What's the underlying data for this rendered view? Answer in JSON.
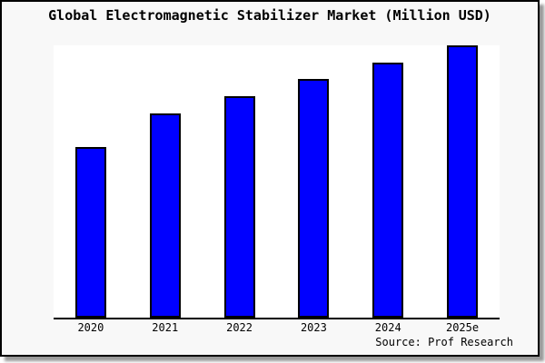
{
  "colors": {
    "bar_fill": "#0000ff",
    "bar_border": "#000000",
    "plot_bg": "#ffffff",
    "panel_bg": "#f8f8f8",
    "text": "#000000"
  },
  "chart_data": {
    "type": "bar",
    "title": "Global Electromagnetic Stabilizer Market (Million USD)",
    "categories": [
      "2020",
      "2021",
      "2022",
      "2023",
      "2024",
      "2025e"
    ],
    "values": [
      62.7,
      75,
      81.3,
      87.7,
      93.7,
      100
    ],
    "value_scale": "relative, 2025e = 100 (no y-axis labels shown)",
    "xlabel": "",
    "ylabel": "",
    "ylim": [
      0,
      100
    ],
    "grid": false,
    "legend": false,
    "source": "Source: Prof Research"
  }
}
